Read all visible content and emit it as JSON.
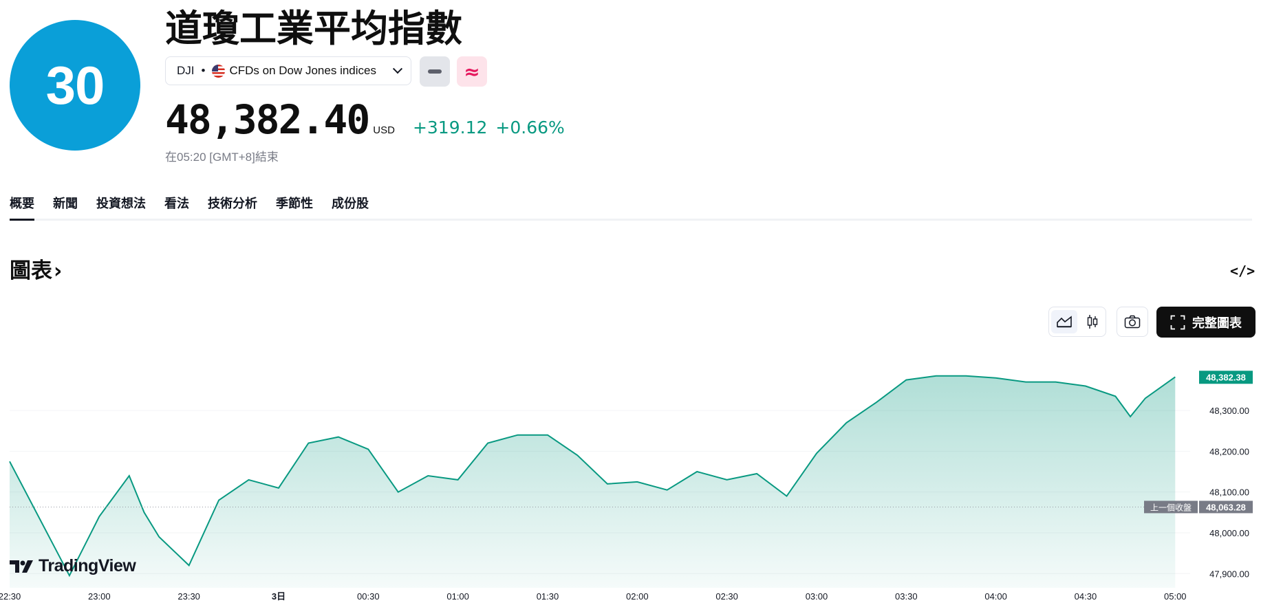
{
  "header": {
    "logo_text": "30",
    "title": "道瓊工業平均指數",
    "symbol": "DJI",
    "exchange": "CFDs on Dow Jones indices",
    "market_status_icon": "minus-icon",
    "delay_icon": "approx-icon",
    "delay_symbol": "≈",
    "price": "48,382.40",
    "currency": "USD",
    "change_abs": "+319.12",
    "change_pct": "+0.66%",
    "closed_note": "在05:20 [GMT+8]結束"
  },
  "tabs": [
    "概要",
    "新聞",
    "投資想法",
    "看法",
    "技術分析",
    "季節性",
    "成份股"
  ],
  "section": {
    "title": "圖表",
    "arrow": "›",
    "embed_icon": "</>"
  },
  "toolbar": {
    "full_chart_label": "完整圖表"
  },
  "watermark": "TradingView",
  "colors": {
    "line": "#089981",
    "positive": "#089981",
    "delayed": "#e5195e"
  },
  "chart_data": {
    "type": "area",
    "x": [
      "22:30",
      "22:45",
      "22:50",
      "23:00",
      "23:10",
      "23:15",
      "23:20",
      "23:30",
      "23:40",
      "23:50",
      "24:00",
      "00:10",
      "00:20",
      "00:30",
      "00:40",
      "00:50",
      "01:00",
      "01:10",
      "01:20",
      "01:30",
      "01:40",
      "01:50",
      "02:00",
      "02:10",
      "02:20",
      "02:30",
      "02:40",
      "02:50",
      "03:00",
      "03:10",
      "03:20",
      "03:30",
      "03:40",
      "03:50",
      "04:00",
      "04:10",
      "04:20",
      "04:30",
      "04:40",
      "04:45",
      "04:50",
      "05:00"
    ],
    "values": [
      48175,
      47965,
      47895,
      48040,
      48140,
      48050,
      47990,
      47920,
      48080,
      48130,
      48110,
      48220,
      48235,
      48205,
      48100,
      48140,
      48130,
      48220,
      48240,
      48240,
      48190,
      48120,
      48125,
      48105,
      48150,
      48130,
      48145,
      48090,
      48195,
      48270,
      48320,
      48375,
      48385,
      48385,
      48380,
      48370,
      48370,
      48360,
      48335,
      48285,
      48330,
      48382.38
    ],
    "x_ticks": [
      "22:30",
      "23:00",
      "23:30",
      "3日",
      "00:30",
      "01:00",
      "01:30",
      "02:00",
      "02:30",
      "03:00",
      "03:30",
      "04:00",
      "04:30",
      "05:00"
    ],
    "y_ticks": [
      "47,900.00",
      "48,000.00",
      "48,100.00",
      "48,200.00",
      "48,300.00"
    ],
    "y_ticks_num": [
      47900,
      48000,
      48100,
      48200,
      48300
    ],
    "ylim": [
      47865,
      48425
    ],
    "last_price": 48382.38,
    "last_label": "48,382.38",
    "prev_close": 48063.28,
    "prev_close_label": "48,063.28",
    "prev_close_title": "上一個收盤"
  }
}
